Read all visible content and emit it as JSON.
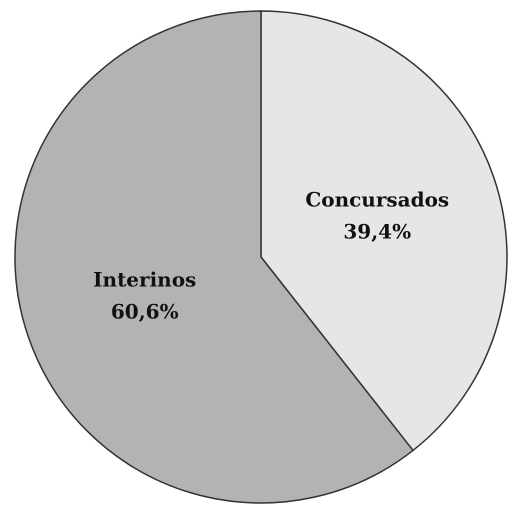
{
  "chart_data": {
    "type": "pie",
    "categories": [
      "Concursados",
      "Interinos"
    ],
    "values": [
      39.4,
      60.6
    ],
    "value_labels": [
      "39,4%",
      "60,6%"
    ],
    "colors": [
      "#e6e6e6",
      "#b3b3b3"
    ]
  }
}
